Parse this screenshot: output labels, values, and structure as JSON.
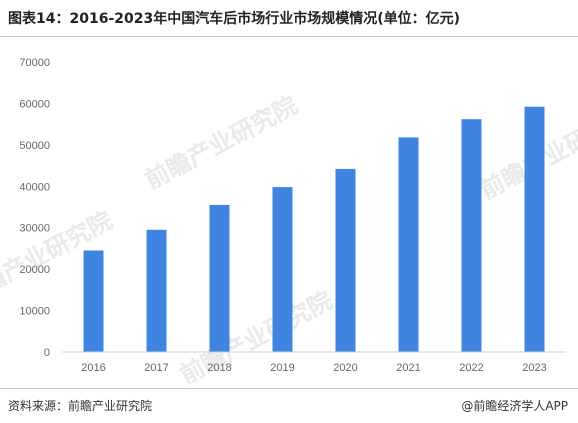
{
  "title": "图表14：2016-2023年中国汽车后市场行业市场规模情况(单位：亿元)",
  "footer": {
    "source": "资料来源：前瞻产业研究院",
    "credit": "@前瞻经济学人APP"
  },
  "watermark": "前瞻产业研究院",
  "colors": {
    "bar": "#3f84e0",
    "text": "#666666"
  },
  "chart_data": {
    "type": "bar",
    "categories": [
      "2016",
      "2017",
      "2018",
      "2019",
      "2020",
      "2021",
      "2022",
      "2023"
    ],
    "values": [
      24500,
      29500,
      35500,
      39800,
      44200,
      51800,
      56200,
      59200
    ],
    "ylim": [
      0,
      70000
    ],
    "yticks": [
      0,
      10000,
      20000,
      30000,
      40000,
      50000,
      60000,
      70000
    ],
    "title": "",
    "xlabel": "",
    "ylabel": "",
    "grid": false
  }
}
